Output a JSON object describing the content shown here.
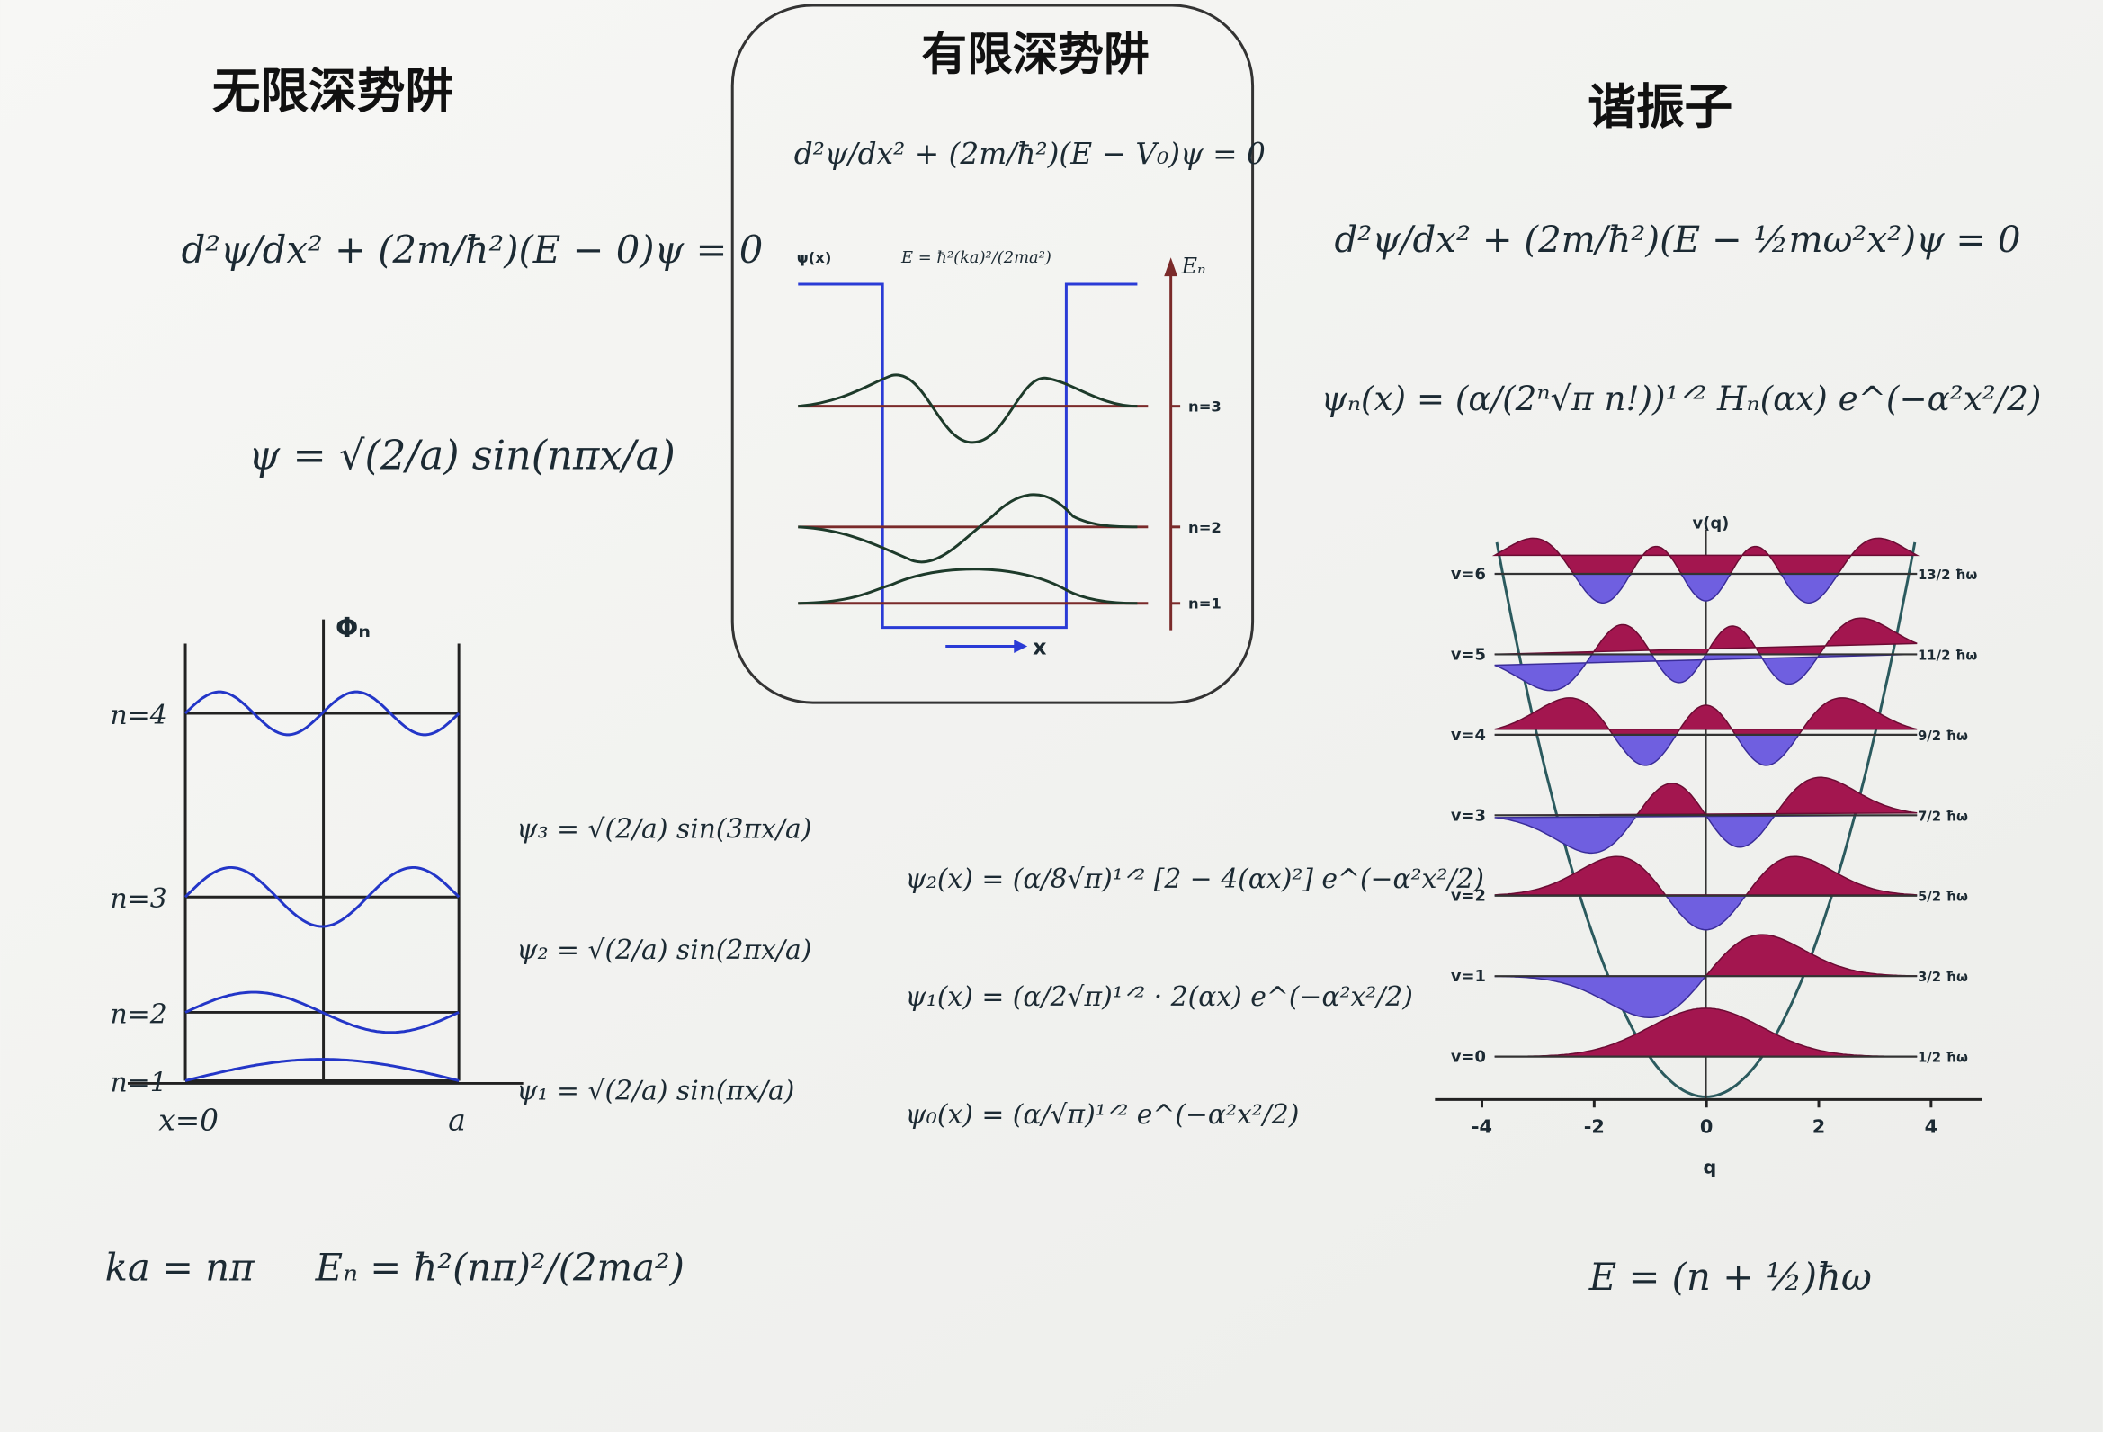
{
  "left": {
    "title": "无限深势阱",
    "schrodinger": "d²ψ/dx² + (2m/ħ²)(E − 0)ψ = 0",
    "solution": "ψ = √(2/a) sin(nπx/a)",
    "plot": {
      "axis_label": "Φₙ",
      "levels": [
        "n=4",
        "n=3",
        "n=2",
        "n=1"
      ],
      "x_start": "x=0",
      "x_end": "a"
    },
    "states": [
      "ψ₃ = √(2/a) sin(3πx/a)",
      "ψ₂ = √(2/a) sin(2πx/a)",
      "ψ₁ = √(2/a) sin(πx/a)"
    ],
    "quantization": "ka = nπ",
    "energy": "Eₙ = ħ²(nπ)²/(2ma²)"
  },
  "middle": {
    "title": "有限深势阱",
    "schrodinger": "d²ψ/dx² + (2m/ħ²)(E − V₀)ψ = 0",
    "plot": {
      "psi_label": "ψ(x)",
      "energy_formula": "E = ħ²(ka)²/(2ma²)",
      "energy_axis": "Eₙ",
      "levels": [
        "n=3",
        "n=2",
        "n=1"
      ],
      "x_label": "x"
    }
  },
  "right": {
    "title": "谐振子",
    "schrodinger": "d²ψ/dx² + (2m/ħ²)(E − ½mω²x²)ψ = 0",
    "solution": "ψₙ(x) = (α/(2ⁿ√π n!))¹ᐟ² Hₙ(αx) e^(−α²x²/2)",
    "states": [
      "ψ₂(x) = (α/8√π)¹ᐟ² [2 − 4(αx)²] e^(−α²x²/2)",
      "ψ₁(x) = (α/2√π)¹ᐟ² · 2(αx) e^(−α²x²/2)",
      "ψ₀(x) = (α/√π)¹ᐟ² e^(−α²x²/2)"
    ],
    "plot": {
      "axis_label": "v(q)",
      "x_label": "q",
      "levels": [
        "v=6",
        "v=5",
        "v=4",
        "v=3",
        "v=2",
        "v=1",
        "v=0"
      ],
      "energies": [
        "13/2 ħω",
        "11/2 ħω",
        "9/2 ħω",
        "7/2 ħω",
        "5/2 ħω",
        "3/2 ħω",
        "1/2 ħω"
      ],
      "x_ticks": [
        "-4",
        "-2",
        "0",
        "2",
        "4"
      ]
    },
    "energy": "E = (n + ½)ħω"
  }
}
